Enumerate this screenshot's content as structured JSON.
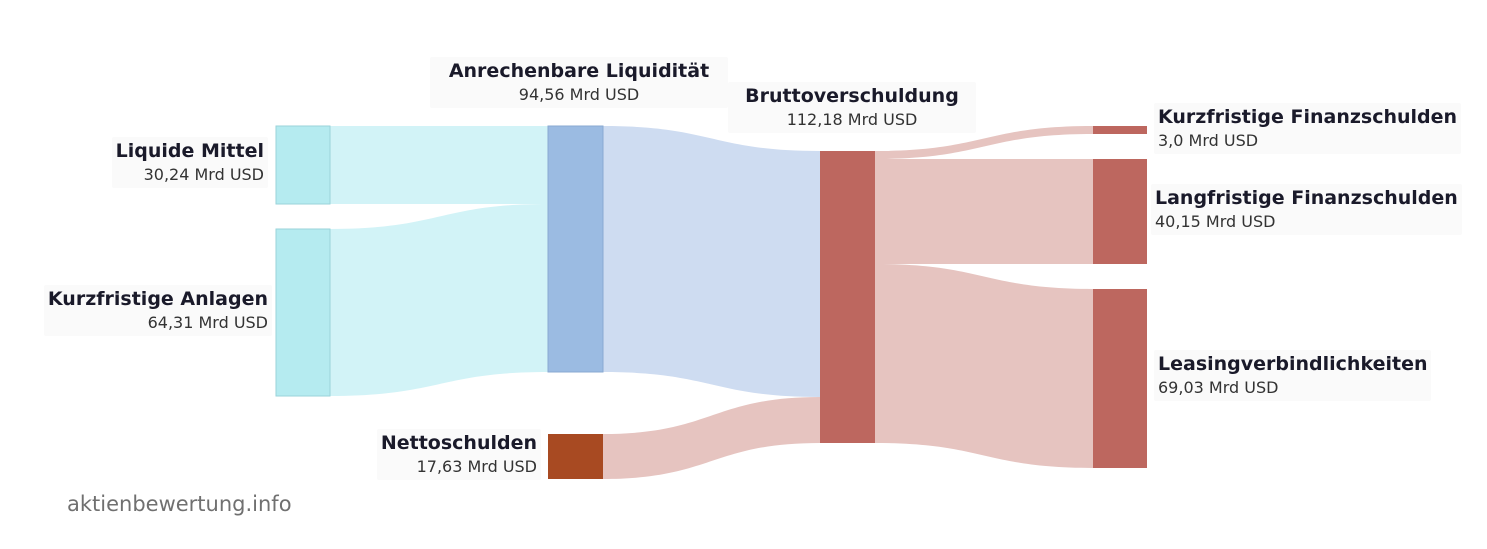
{
  "watermark": "aktienbewertung.info",
  "colors": {
    "liquidity_node": "#b5ebf0",
    "liquidity_border": "#9ad3da",
    "anrechenbar_node": "#9bbbe2",
    "debt_node": "#bd675f",
    "net_debt_node": "#a84a22",
    "flow_liquid": "#d2f3f7",
    "flow_blue": "#cedcf1",
    "flow_red": "#e6c4c0"
  },
  "nodes": {
    "liquide": {
      "name": "Liquide Mittel",
      "value": "30,24 Mrd USD"
    },
    "kurzanlagen": {
      "name": "Kurzfristige Anlagen",
      "value": "64,31 Mrd USD"
    },
    "anrechenbar": {
      "name": "Anrechenbare Liquidität",
      "value": "94,56 Mrd USD"
    },
    "netto": {
      "name": "Nettoschulden",
      "value": "17,63 Mrd USD"
    },
    "brutto": {
      "name": "Bruttoverschuldung",
      "value": "112,18 Mrd USD"
    },
    "kurzfin": {
      "name": "Kurzfristige Finanzschulden",
      "value": "3,0 Mrd USD"
    },
    "langfin": {
      "name": "Langfristige Finanzschulden",
      "value": "40,15 Mrd USD"
    },
    "leasing": {
      "name": "Leasingverbindlichkeiten",
      "value": "69,03 Mrd USD"
    }
  }
}
